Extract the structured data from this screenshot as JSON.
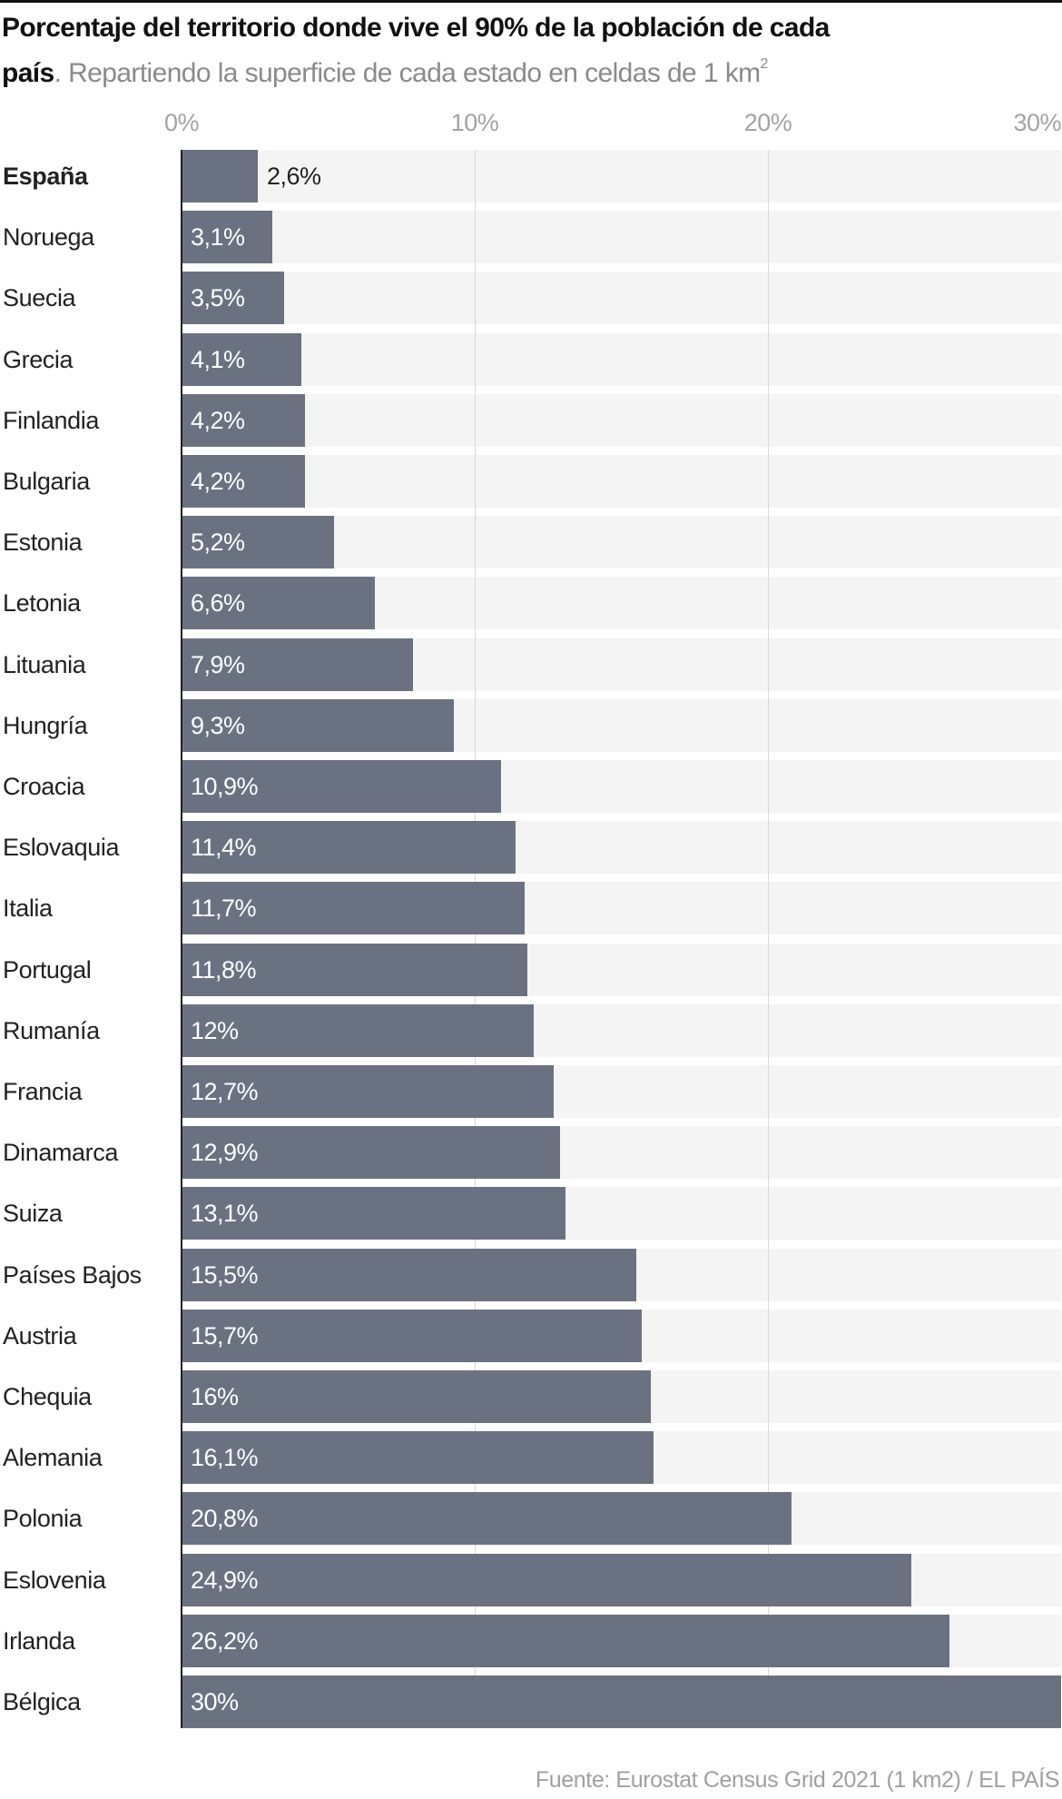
{
  "chart_data": {
    "type": "bar",
    "orientation": "horizontal",
    "title": "Porcentaje del territorio donde vive el 90% de la población de cada país",
    "subtitle_prefix": ". Repartiendo la superficie de cada estado en celdas de 1 km",
    "subtitle_sup": "2",
    "title_bold_part1": "Porcentaje del territorio donde vive el 90% de la población de cada",
    "title_bold_part2": "país",
    "xlim": [
      0,
      30
    ],
    "xticks": [
      0,
      10,
      20,
      30
    ],
    "xtick_labels": [
      "0%",
      "10%",
      "20%",
      "30%"
    ],
    "grid": true,
    "highlight": "España",
    "categories": [
      "España",
      "Noruega",
      "Suecia",
      "Grecia",
      "Finlandia",
      "Bulgaria",
      "Estonia",
      "Letonia",
      "Lituania",
      "Hungría",
      "Croacia",
      "Eslovaquia",
      "Italia",
      "Portugal",
      "Rumanía",
      "Francia",
      "Dinamarca",
      "Suiza",
      "Países Bajos",
      "Austria",
      "Chequia",
      "Alemania",
      "Polonia",
      "Eslovenia",
      "Irlanda",
      "Bélgica"
    ],
    "values": [
      2.6,
      3.1,
      3.5,
      4.1,
      4.2,
      4.2,
      5.2,
      6.6,
      7.9,
      9.3,
      10.9,
      11.4,
      11.7,
      11.8,
      12,
      12.7,
      12.9,
      13.1,
      15.5,
      15.7,
      16,
      16.1,
      20.8,
      24.9,
      26.2,
      30
    ],
    "value_labels": [
      "2,6%",
      "3,1%",
      "3,5%",
      "4,1%",
      "4,2%",
      "4,2%",
      "5,2%",
      "6,6%",
      "7,9%",
      "9,3%",
      "10,9%",
      "11,4%",
      "11,7%",
      "11,8%",
      "12%",
      "12,7%",
      "12,9%",
      "13,1%",
      "15,5%",
      "15,7%",
      "16%",
      "16,1%",
      "20,8%",
      "24,9%",
      "26,2%",
      "30%"
    ],
    "source": "Fuente: Eurostat Census Grid 2021 (1 km2) / EL PAÍS"
  },
  "colors": {
    "bar": "#6a7282",
    "band": "#f4f4f4",
    "grid": "#d8d8d8"
  }
}
